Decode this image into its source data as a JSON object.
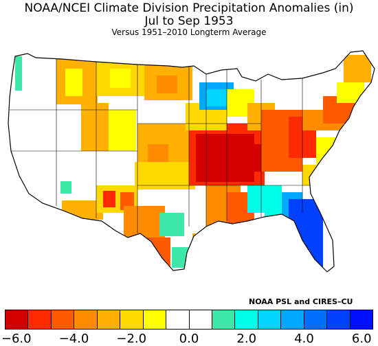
{
  "title": {
    "line1": "NOAA/NCEI Climate Division Precipitation Anomalies (in)",
    "line2": "Jul to Sep 1953",
    "line3": "Versus 1951–2010 Longterm Average"
  },
  "credit": "NOAA PSL and CIRES–CU",
  "legend": {
    "colors": [
      "#d40000",
      "#ff2a00",
      "#ff5a00",
      "#ff8c00",
      "#ffb000",
      "#ffd800",
      "#ffff00",
      "#ffffff",
      "#ffffff",
      "#3ee8a8",
      "#00ffe6",
      "#00d4ff",
      "#00a8ff",
      "#0070ff",
      "#0040ff",
      "#0010ff"
    ],
    "ticks": [
      "−6.0",
      "−4.0",
      "−2.0",
      "0.0",
      "2.0",
      "4.0",
      "6.0"
    ]
  },
  "map": {
    "colors": {
      "outline": "#000000",
      "neutral": "#ffffff",
      "yellow": "#ffff00",
      "amber": "#ffd800",
      "orange": "#ffb000",
      "dark_orange": "#ff8c00",
      "red_orange": "#ff5a00",
      "red": "#ff2a00",
      "dark_red": "#d40000",
      "teal": "#3ee8a8",
      "cyan": "#00ffe6",
      "sky": "#00d4ff",
      "light_blue": "#00a8ff",
      "blue": "#0070ff",
      "deep_blue": "#0040ff"
    }
  }
}
